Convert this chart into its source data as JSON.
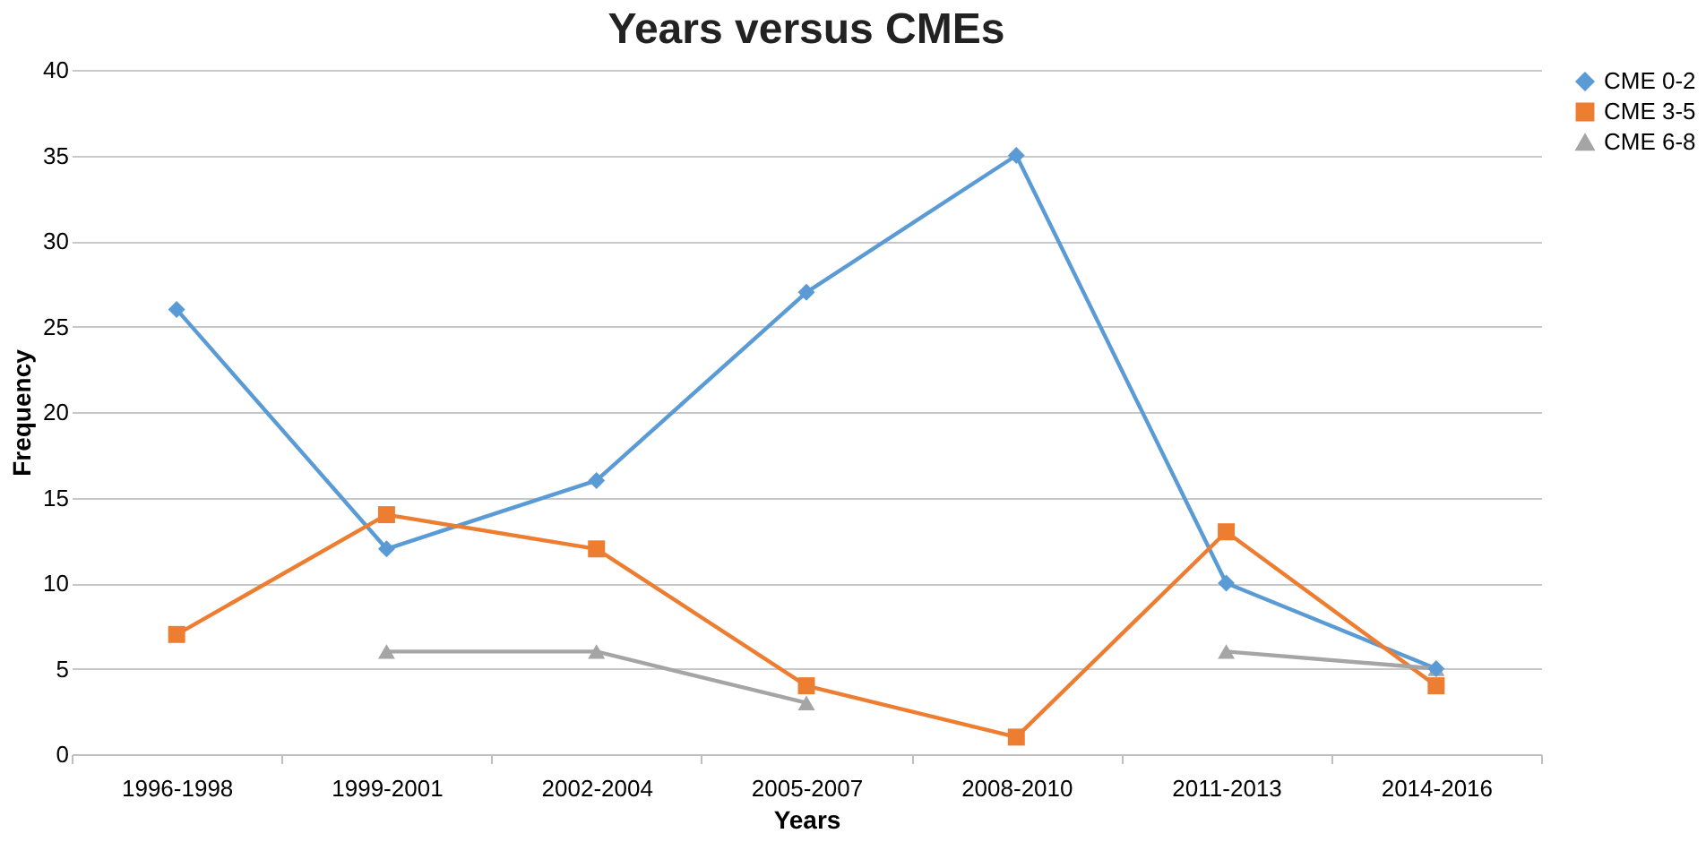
{
  "chart_data": {
    "type": "line",
    "title": "Years versus CMEs",
    "xlabel": "Years",
    "ylabel": "Frequency",
    "categories": [
      "1996-1998",
      "1999-2001",
      "2002-2004",
      "2005-2007",
      "2008-2010",
      "2011-2013",
      "2014-2016"
    ],
    "series": [
      {
        "name": "CME 0-2",
        "color": "#5b9bd5",
        "marker": "diamond",
        "values": [
          26,
          12,
          16,
          27,
          35,
          10,
          5
        ]
      },
      {
        "name": "CME 3-5",
        "color": "#ed7d31",
        "marker": "square",
        "values": [
          7,
          14,
          12,
          4,
          1,
          13,
          4
        ]
      },
      {
        "name": "CME 6-8",
        "color": "#a5a5a5",
        "marker": "triangle",
        "values": [
          null,
          6,
          6,
          3,
          null,
          6,
          5
        ]
      }
    ],
    "ylim": [
      0,
      40
    ],
    "yticks": [
      0,
      5,
      10,
      15,
      20,
      25,
      30,
      35,
      40
    ],
    "grid": "y",
    "legend": "right",
    "line_style": "solid"
  }
}
